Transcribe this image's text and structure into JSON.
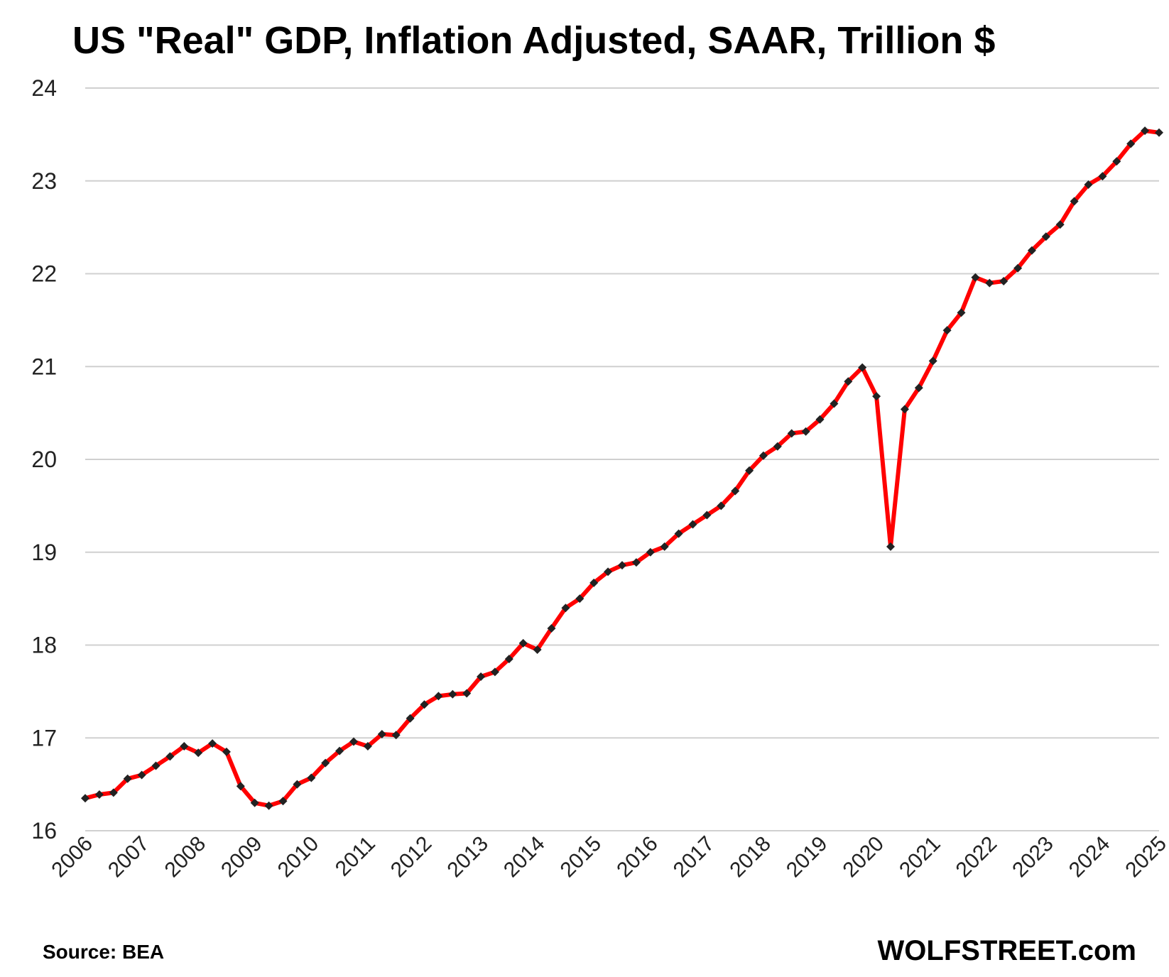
{
  "chart_data": {
    "type": "line",
    "title": "US \"Real\" GDP, Inflation Adjusted, SAAR, Trillion $",
    "xlabel": "",
    "ylabel": "",
    "ylim": [
      16,
      24
    ],
    "yticks": [
      "16",
      "17",
      "18",
      "19",
      "20",
      "21",
      "22",
      "23",
      "24"
    ],
    "xticks": [
      "2006",
      "2007",
      "2008",
      "2009",
      "2010",
      "2011",
      "2012",
      "2013",
      "2014",
      "2015",
      "2016",
      "2017",
      "2018",
      "2019",
      "2020",
      "2021",
      "2022",
      "2023",
      "2024",
      "2025"
    ],
    "x_start_year": 2006,
    "x_end_year": 2025,
    "grid": true,
    "colors": {
      "line": "#ff0000",
      "marker": "#222222"
    },
    "series": [
      {
        "values": [
          16.35,
          16.39,
          16.41,
          16.56,
          16.6,
          16.7,
          16.8,
          16.91,
          16.84,
          16.94,
          16.85,
          16.48,
          16.3,
          16.27,
          16.32,
          16.5,
          16.57,
          16.73,
          16.86,
          16.96,
          16.91,
          17.04,
          17.03,
          17.21,
          17.36,
          17.45,
          17.47,
          17.48,
          17.66,
          17.71,
          17.85,
          18.02,
          17.95,
          18.18,
          18.4,
          18.5,
          18.67,
          18.79,
          18.86,
          18.89,
          19.0,
          19.06,
          19.2,
          19.3,
          19.4,
          19.5,
          19.66,
          19.88,
          20.04,
          20.14,
          20.28,
          20.3,
          20.43,
          20.6,
          20.84,
          20.99,
          20.68,
          19.06,
          20.54,
          20.77,
          21.06,
          21.39,
          21.58,
          21.96,
          21.9,
          21.92,
          22.06,
          22.25,
          22.4,
          22.53,
          22.78,
          22.96,
          23.05,
          23.21,
          23.4,
          23.54,
          23.52
        ]
      }
    ]
  },
  "footer": {
    "source": "Source: BEA",
    "brand": "WOLFSTREET.com"
  }
}
